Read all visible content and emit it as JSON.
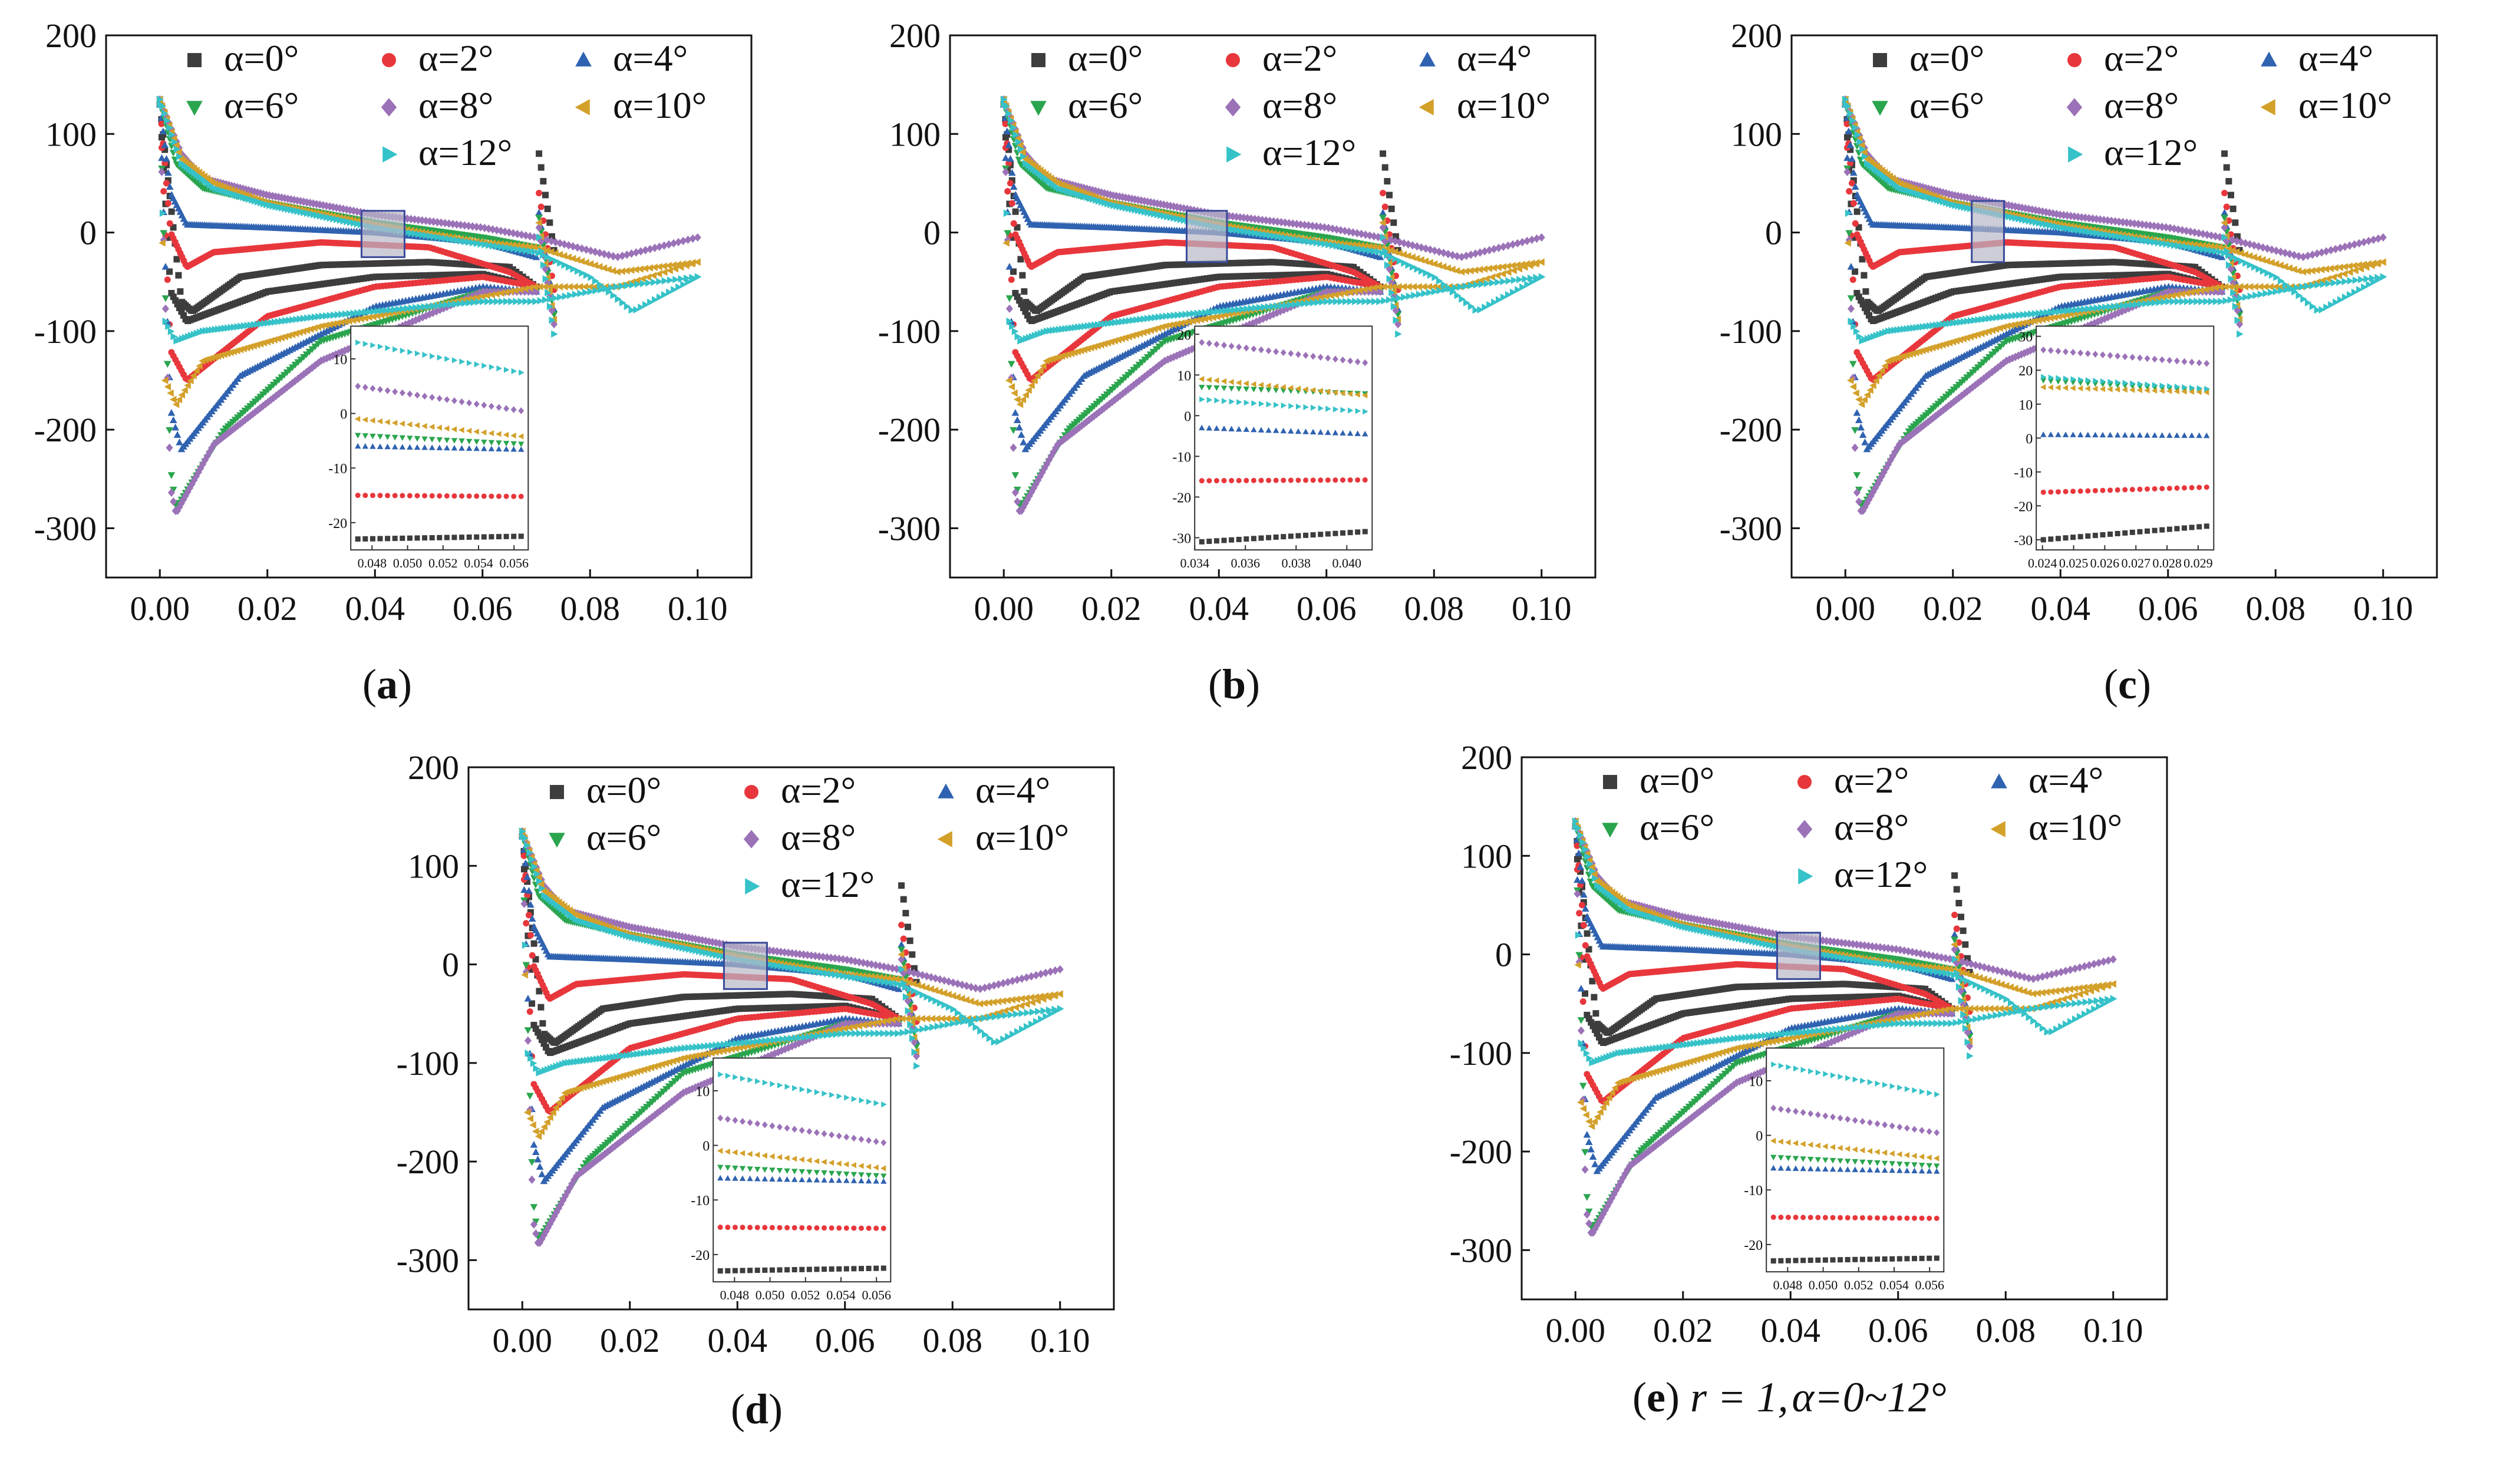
{
  "figure": {
    "panels": [
      {
        "id": "a",
        "caption_letter": "a",
        "caption_extra": "",
        "caption_extra2": ""
      },
      {
        "id": "b",
        "caption_letter": "b",
        "caption_extra": "",
        "caption_extra2": ""
      },
      {
        "id": "c",
        "caption_letter": "c",
        "caption_extra": "",
        "caption_extra2": ""
      },
      {
        "id": "d",
        "caption_letter": "d",
        "caption_extra": "",
        "caption_extra2": ""
      },
      {
        "id": "e",
        "caption_letter": "e",
        "caption_extra": "r = 1,",
        "caption_extra2": "α=0~12°"
      }
    ]
  },
  "colors": {
    "a0": "#3d3d3d",
    "a2": "#e8373c",
    "a4": "#2f62b0",
    "a6": "#2aa54e",
    "a8": "#9b72b8",
    "a10": "#d3a02a",
    "a12": "#35c2c8",
    "box": "#3a4a9a"
  },
  "chart_data": [
    {
      "panel": "a",
      "type": "scatter",
      "xlabel": "",
      "ylabel": "",
      "xlim": [
        -0.01,
        0.11
      ],
      "ylim": [
        -350,
        200
      ],
      "xticks": [
        "0.00",
        "0.02",
        "0.04",
        "0.06",
        "0.08",
        "0.10"
      ],
      "yticks": [
        "-300",
        "-200",
        "-100",
        "0",
        "100",
        "200"
      ],
      "legend": [
        "α=0°",
        "α=2°",
        "α=4°",
        "α=6°",
        "α=8°",
        "α=10°",
        "α=12°"
      ],
      "zoom_box": {
        "x": [
          0.0375,
          0.0455
        ],
        "y": [
          -25,
          22
        ]
      },
      "inset": {
        "xlim": [
          0.0468,
          0.0568
        ],
        "ylim": [
          -25,
          16
        ],
        "xticks": [
          "0.048",
          "0.050",
          "0.052",
          "0.054",
          "0.056"
        ],
        "yticks": [
          "-20",
          "-10",
          "0",
          "10"
        ],
        "levels": [
          -23,
          -15,
          -6,
          -4,
          5,
          -1,
          13
        ],
        "slopes": [
          0.5,
          -0.2,
          -0.6,
          -1.6,
          -4.5,
          -3.2,
          -5.5
        ]
      }
    },
    {
      "panel": "b",
      "type": "scatter",
      "xlabel": "",
      "ylabel": "",
      "xlim": [
        -0.01,
        0.11
      ],
      "ylim": [
        -350,
        200
      ],
      "xticks": [
        "0.00",
        "0.02",
        "0.04",
        "0.06",
        "0.08",
        "0.10"
      ],
      "yticks": [
        "-300",
        "-200",
        "-100",
        "0",
        "100",
        "200"
      ],
      "legend": [
        "α=0°",
        "α=2°",
        "α=4°",
        "α=6°",
        "α=8°",
        "α=10°",
        "α=12°"
      ],
      "zoom_box": {
        "x": [
          0.034,
          0.0415
        ],
        "y": [
          -30,
          22
        ]
      },
      "inset": {
        "xlim": [
          0.034,
          0.041
        ],
        "ylim": [
          -33,
          22
        ],
        "xticks": [
          "0.034",
          "0.036",
          "0.038",
          "0.040"
        ],
        "yticks": [
          "-30",
          "-20",
          "-10",
          "0",
          "10",
          "20"
        ],
        "levels": [
          -31,
          -16,
          -3,
          7,
          18,
          9,
          4
        ],
        "slopes": [
          2.5,
          0.2,
          -1.5,
          -1.6,
          -5,
          -4,
          -3
        ]
      }
    },
    {
      "panel": "c",
      "type": "scatter",
      "xlabel": "",
      "ylabel": "",
      "xlim": [
        -0.01,
        0.11
      ],
      "ylim": [
        -350,
        200
      ],
      "xticks": [
        "0.00",
        "0.02",
        "0.04",
        "0.06",
        "0.08",
        "0.10"
      ],
      "yticks": [
        "-300",
        "-200",
        "-100",
        "0",
        "100",
        "200"
      ],
      "legend": [
        "α=0°",
        "α=2°",
        "α=4°",
        "α=6°",
        "α=8°",
        "α=10°",
        "α=12°"
      ],
      "zoom_box": {
        "x": [
          0.0235,
          0.0295
        ],
        "y": [
          -30,
          32
        ]
      },
      "inset": {
        "xlim": [
          0.0238,
          0.0295
        ],
        "ylim": [
          -33,
          33
        ],
        "xticks": [
          "0.024",
          "0.025",
          "0.026",
          "0.027",
          "0.028",
          "0.029"
        ],
        "yticks": [
          "-30",
          "-20",
          "-10",
          "0",
          "10",
          "20",
          "30"
        ],
        "levels": [
          -30,
          -16,
          1,
          17,
          26,
          15,
          18
        ],
        "slopes": [
          4,
          1.5,
          -0.3,
          -3,
          -4,
          -1.5,
          -3.5
        ]
      }
    },
    {
      "panel": "d",
      "type": "scatter",
      "xlabel": "",
      "ylabel": "",
      "xlim": [
        -0.01,
        0.11
      ],
      "ylim": [
        -350,
        200
      ],
      "xticks": [
        "0.00",
        "0.02",
        "0.04",
        "0.06",
        "0.08",
        "0.10"
      ],
      "yticks": [
        "-300",
        "-200",
        "-100",
        "0",
        "100",
        "200"
      ],
      "legend": [
        "α=0°",
        "α=2°",
        "α=4°",
        "α=6°",
        "α=8°",
        "α=10°",
        "α=12°"
      ],
      "zoom_box": {
        "x": [
          0.0375,
          0.0455
        ],
        "y": [
          -25,
          22
        ]
      },
      "inset": {
        "xlim": [
          0.0468,
          0.0568
        ],
        "ylim": [
          -25,
          16
        ],
        "xticks": [
          "0.048",
          "0.050",
          "0.052",
          "0.054",
          "0.056"
        ],
        "yticks": [
          "-20",
          "-10",
          "0",
          "10"
        ],
        "levels": [
          -23,
          -15,
          -6,
          -4,
          5,
          -1,
          13
        ],
        "slopes": [
          0.5,
          -0.2,
          -0.6,
          -1.6,
          -4.5,
          -3.2,
          -5.5
        ]
      }
    },
    {
      "panel": "e",
      "type": "scatter",
      "xlabel": "",
      "ylabel": "",
      "xlim": [
        -0.01,
        0.11
      ],
      "ylim": [
        -350,
        200
      ],
      "xticks": [
        "0.00",
        "0.02",
        "0.04",
        "0.06",
        "0.08",
        "0.10"
      ],
      "yticks": [
        "-300",
        "-200",
        "-100",
        "0",
        "100",
        "200"
      ],
      "legend": [
        "α=0°",
        "α=2°",
        "α=4°",
        "α=6°",
        "α=8°",
        "α=10°",
        "α=12°"
      ],
      "zoom_box": {
        "x": [
          0.0375,
          0.0455
        ],
        "y": [
          -25,
          22
        ]
      },
      "inset": {
        "xlim": [
          0.0468,
          0.0568
        ],
        "ylim": [
          -25,
          16
        ],
        "xticks": [
          "0.048",
          "0.050",
          "0.052",
          "0.054",
          "0.056"
        ],
        "yticks": [
          "-20",
          "-10",
          "0",
          "10"
        ],
        "levels": [
          -23,
          -15,
          -6,
          -4,
          5,
          -1,
          13
        ],
        "slopes": [
          0.5,
          -0.2,
          -0.6,
          -1.6,
          -4.5,
          -3.2,
          -5.5
        ]
      }
    }
  ],
  "series_curves": {
    "note_units": "x in chord units, y in data units",
    "upper": [
      {
        "series": "α=0°",
        "pts": [
          [
            0,
            130
          ],
          [
            0.004,
            -70
          ],
          [
            0.006,
            -80
          ],
          [
            0.015,
            -45
          ],
          [
            0.03,
            -33
          ],
          [
            0.05,
            -30
          ],
          [
            0.065,
            -35
          ],
          [
            0.07,
            -55
          ]
        ]
      },
      {
        "series": "α=2°",
        "pts": [
          [
            0,
            130
          ],
          [
            0.002,
            0
          ],
          [
            0.005,
            -35
          ],
          [
            0.01,
            -20
          ],
          [
            0.03,
            -10
          ],
          [
            0.05,
            -15
          ],
          [
            0.065,
            -40
          ],
          [
            0.07,
            -55
          ]
        ]
      },
      {
        "series": "α=4°",
        "pts": [
          [
            0,
            130
          ],
          [
            0.002,
            40
          ],
          [
            0.005,
            8
          ],
          [
            0.02,
            5
          ],
          [
            0.04,
            0
          ],
          [
            0.06,
            -10
          ],
          [
            0.07,
            -25
          ]
        ]
      },
      {
        "series": "α=6°",
        "pts": [
          [
            0,
            135
          ],
          [
            0.003,
            70
          ],
          [
            0.008,
            45
          ],
          [
            0.02,
            30
          ],
          [
            0.04,
            10
          ],
          [
            0.06,
            -5
          ],
          [
            0.07,
            -15
          ]
        ]
      },
      {
        "series": "α=8°",
        "pts": [
          [
            0,
            135
          ],
          [
            0.004,
            80
          ],
          [
            0.008,
            55
          ],
          [
            0.02,
            38
          ],
          [
            0.04,
            18
          ],
          [
            0.06,
            5
          ],
          [
            0.07,
            -5
          ],
          [
            0.085,
            -25
          ],
          [
            0.1,
            -5
          ]
        ]
      },
      {
        "series": "α=10°",
        "pts": [
          [
            0,
            135
          ],
          [
            0.004,
            75
          ],
          [
            0.01,
            50
          ],
          [
            0.02,
            30
          ],
          [
            0.04,
            8
          ],
          [
            0.06,
            -10
          ],
          [
            0.07,
            -15
          ],
          [
            0.085,
            -40
          ],
          [
            0.1,
            -30
          ]
        ]
      },
      {
        "series": "α=12°",
        "pts": [
          [
            0,
            135
          ],
          [
            0.004,
            70
          ],
          [
            0.01,
            45
          ],
          [
            0.02,
            28
          ],
          [
            0.04,
            5
          ],
          [
            0.06,
            -12
          ],
          [
            0.07,
            -20
          ],
          [
            0.08,
            -45
          ],
          [
            0.088,
            -80
          ],
          [
            0.1,
            -45
          ]
        ]
      }
    ],
    "lower": [
      {
        "series": "α=0°",
        "pts": [
          [
            0,
            130
          ],
          [
            0.002,
            -60
          ],
          [
            0.005,
            -90
          ],
          [
            0.02,
            -60
          ],
          [
            0.04,
            -45
          ],
          [
            0.06,
            -42
          ],
          [
            0.07,
            -55
          ]
        ]
      },
      {
        "series": "α=2°",
        "pts": [
          [
            0,
            130
          ],
          [
            0.002,
            -120
          ],
          [
            0.005,
            -150
          ],
          [
            0.02,
            -85
          ],
          [
            0.04,
            -55
          ],
          [
            0.06,
            -45
          ],
          [
            0.07,
            -55
          ]
        ]
      },
      {
        "series": "α=4°",
        "pts": [
          [
            0,
            130
          ],
          [
            0.002,
            -180
          ],
          [
            0.004,
            -220
          ],
          [
            0.015,
            -145
          ],
          [
            0.04,
            -75
          ],
          [
            0.06,
            -55
          ],
          [
            0.07,
            -60
          ]
        ]
      },
      {
        "series": "α=6°",
        "pts": [
          [
            0,
            130
          ],
          [
            0.002,
            -240
          ],
          [
            0.003,
            -280
          ],
          [
            0.012,
            -200
          ],
          [
            0.03,
            -110
          ],
          [
            0.06,
            -60
          ],
          [
            0.07,
            -60
          ]
        ]
      },
      {
        "series": "α=8°",
        "pts": [
          [
            0,
            130
          ],
          [
            0.002,
            -260
          ],
          [
            0.003,
            -285
          ],
          [
            0.01,
            -215
          ],
          [
            0.03,
            -130
          ],
          [
            0.06,
            -60
          ],
          [
            0.07,
            -60
          ]
        ]
      },
      {
        "series": "α=10°",
        "pts": [
          [
            0,
            130
          ],
          [
            0.001,
            -150
          ],
          [
            0.003,
            -175
          ],
          [
            0.008,
            -130
          ],
          [
            0.03,
            -95
          ],
          [
            0.06,
            -65
          ],
          [
            0.07,
            -55
          ],
          [
            0.085,
            -55
          ],
          [
            0.1,
            -30
          ]
        ]
      },
      {
        "series": "α=12°",
        "pts": [
          [
            0,
            130
          ],
          [
            0.001,
            -90
          ],
          [
            0.003,
            -110
          ],
          [
            0.008,
            -100
          ],
          [
            0.03,
            -85
          ],
          [
            0.06,
            -70
          ],
          [
            0.07,
            -70
          ],
          [
            0.085,
            -55
          ],
          [
            0.1,
            -45
          ]
        ]
      }
    ]
  }
}
